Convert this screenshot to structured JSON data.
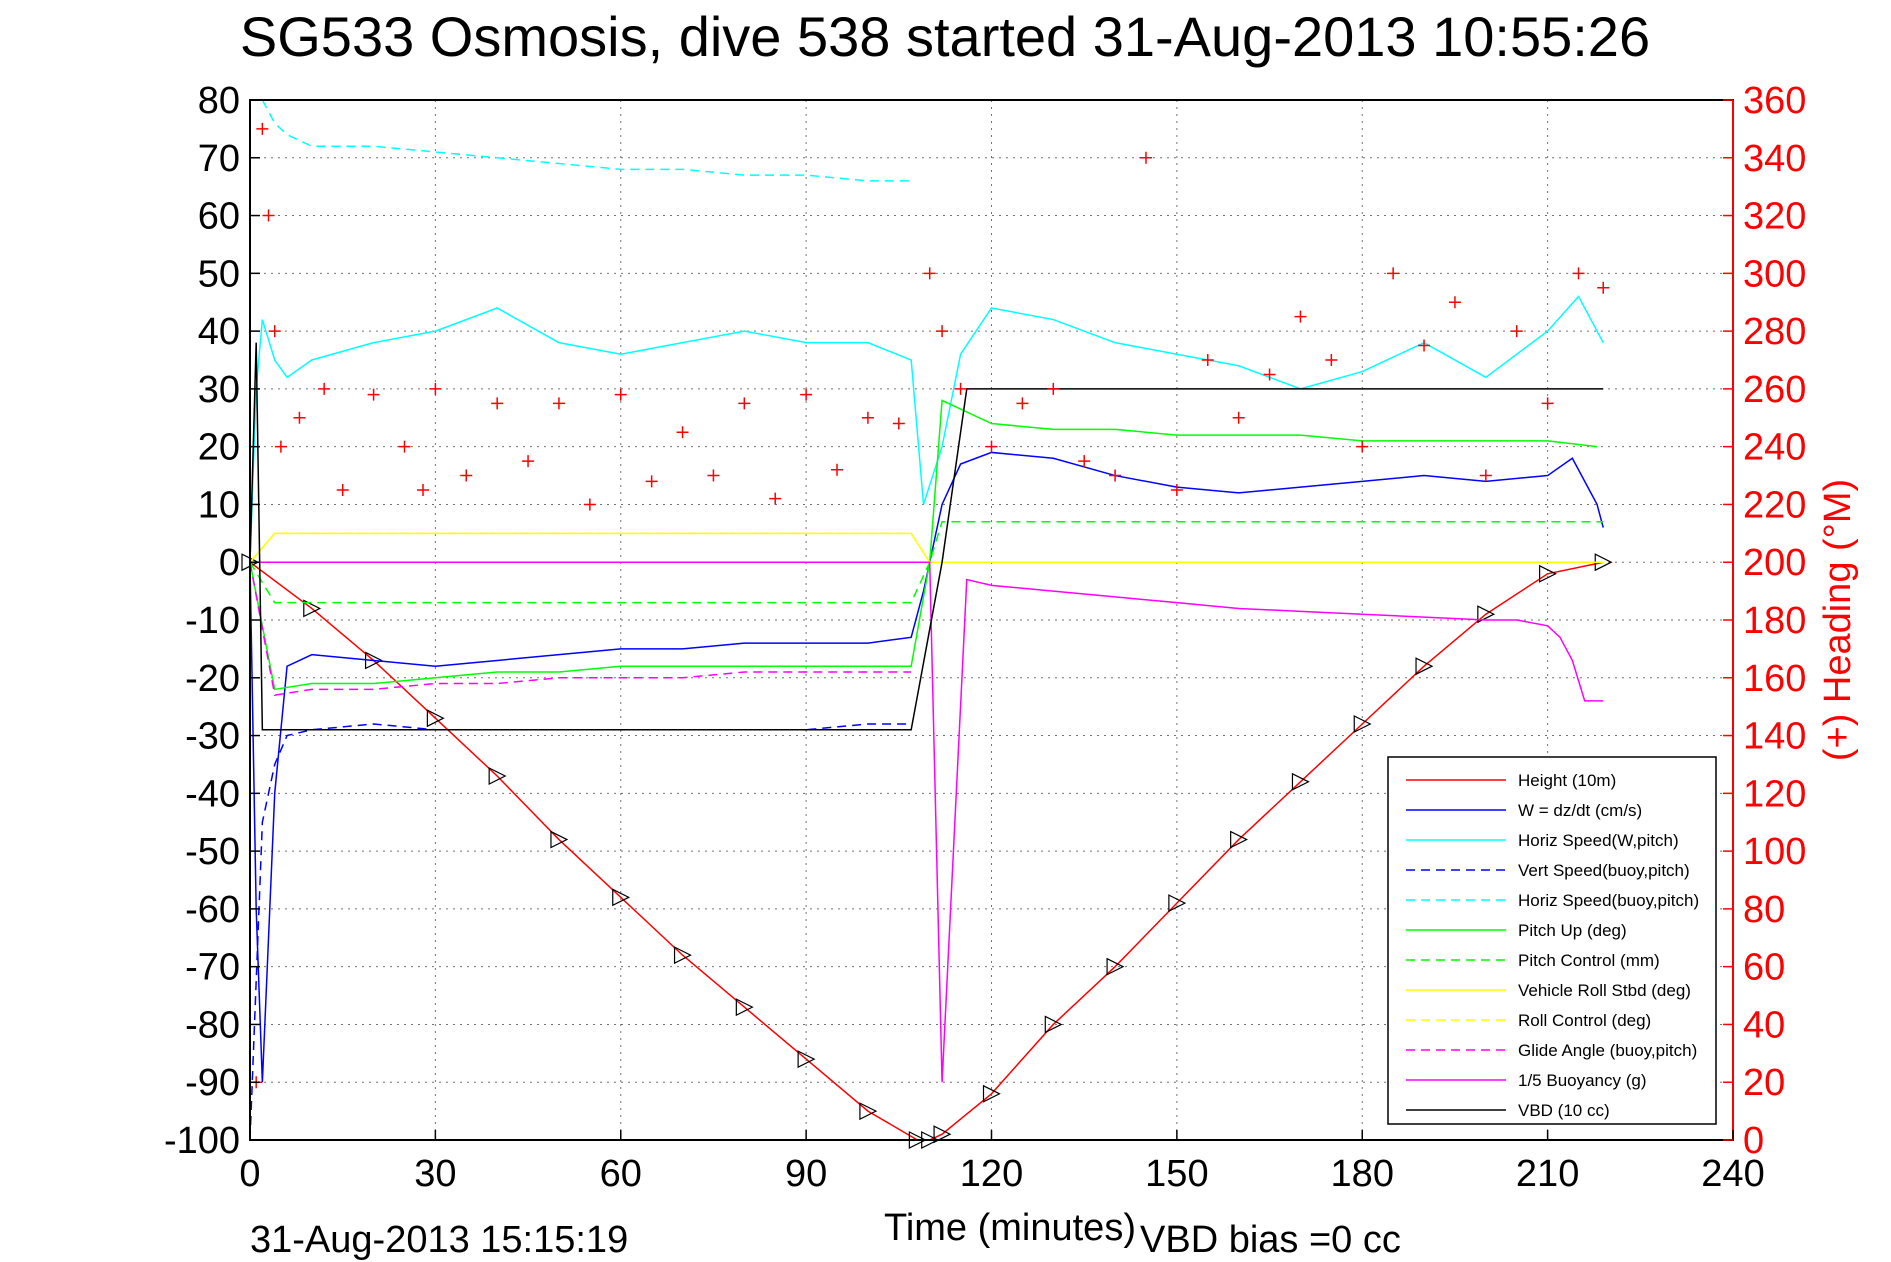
{
  "chart_data": {
    "type": "line",
    "title": "SG533 Osmosis, dive 538 started 31-Aug-2013 10:55:26",
    "xlabel": "Time (minutes)",
    "ylabel": "",
    "y2label": "(+) Heading (°M)",
    "xlim": [
      0,
      240
    ],
    "ylim": [
      -100,
      80
    ],
    "y2lim": [
      0,
      360
    ],
    "xticks": [
      "0",
      "30",
      "60",
      "90",
      "120",
      "150",
      "180",
      "210",
      "240"
    ],
    "yticks": [
      "80",
      "70",
      "60",
      "50",
      "40",
      "30",
      "20",
      "10",
      "0",
      "-10",
      "-20",
      "-30",
      "-40",
      "-50",
      "-60",
      "-70",
      "-80",
      "-90",
      "-100"
    ],
    "y2ticks": [
      "360",
      "340",
      "320",
      "300",
      "280",
      "260",
      "240",
      "220",
      "200",
      "180",
      "160",
      "140",
      "120",
      "100",
      "80",
      "60",
      "40",
      "20",
      "0"
    ],
    "grid": true,
    "legend_position": "lower-right",
    "footer_left": "31-Aug-2013 15:15:19",
    "footer_right": "VBD bias =0 cc",
    "series": [
      {
        "name": "Height (10m)",
        "color": "#ff0000",
        "style": "solid",
        "x": [
          0,
          10,
          20,
          30,
          40,
          50,
          60,
          70,
          80,
          90,
          100,
          108,
          110,
          112,
          120,
          130,
          140,
          150,
          160,
          170,
          180,
          190,
          200,
          210,
          219
        ],
        "y": [
          0,
          -8,
          -17,
          -27,
          -37,
          -48,
          -58,
          -68,
          -77,
          -86,
          -95,
          -100,
          -100,
          -99,
          -92,
          -80,
          -70,
          -59,
          -48,
          -38,
          -28,
          -18,
          -9,
          -2,
          0
        ]
      },
      {
        "name": "W = dz/dt (cm/s)",
        "color": "#0000ff",
        "style": "solid",
        "x": [
          0,
          1,
          2,
          4,
          6,
          10,
          20,
          30,
          40,
          50,
          60,
          70,
          80,
          90,
          100,
          107,
          109,
          112,
          115,
          120,
          130,
          140,
          150,
          160,
          170,
          180,
          190,
          200,
          210,
          214,
          218,
          219
        ],
        "y": [
          0,
          -60,
          -90,
          -40,
          -18,
          -16,
          -17,
          -18,
          -17,
          -16,
          -15,
          -15,
          -14,
          -14,
          -14,
          -13,
          -5,
          10,
          17,
          19,
          18,
          15,
          13,
          12,
          13,
          14,
          15,
          14,
          15,
          18,
          10,
          6
        ]
      },
      {
        "name": "Horiz Speed(W,pitch)",
        "color": "#00ffff",
        "style": "solid",
        "x": [
          0,
          1,
          2,
          4,
          6,
          10,
          20,
          30,
          40,
          50,
          60,
          70,
          80,
          90,
          100,
          107,
          109,
          112,
          115,
          120,
          130,
          140,
          150,
          160,
          170,
          180,
          190,
          200,
          210,
          215,
          219
        ],
        "y": [
          0,
          30,
          42,
          35,
          32,
          35,
          38,
          40,
          44,
          38,
          36,
          38,
          40,
          38,
          38,
          35,
          10,
          20,
          36,
          44,
          42,
          38,
          36,
          34,
          30,
          33,
          38,
          32,
          40,
          46,
          38
        ]
      },
      {
        "name": "Vert Speed(buoy,pitch)",
        "color": "#0000ff",
        "style": "dashed",
        "x": [
          0,
          2,
          4,
          6,
          10,
          20,
          30,
          40,
          50,
          60,
          70,
          80,
          90,
          100,
          107
        ],
        "y": [
          -100,
          -45,
          -35,
          -30,
          -29,
          -28,
          -29,
          -29,
          -29,
          -29,
          -29,
          -29,
          -29,
          -28,
          -28
        ]
      },
      {
        "name": "Horiz Speed(buoy,pitch)",
        "color": "#00ffff",
        "style": "dashed",
        "x": [
          2,
          4,
          6,
          10,
          20,
          30,
          40,
          50,
          60,
          70,
          80,
          90,
          100,
          107
        ],
        "y": [
          80,
          76,
          74,
          72,
          72,
          71,
          70,
          69,
          68,
          68,
          67,
          67,
          66,
          66
        ]
      },
      {
        "name": "Pitch Up (deg)",
        "color": "#00ff00",
        "style": "solid",
        "x": [
          0,
          4,
          10,
          20,
          30,
          40,
          50,
          60,
          70,
          80,
          90,
          100,
          107,
          110,
          112,
          120,
          130,
          140,
          150,
          160,
          170,
          180,
          190,
          200,
          210,
          218
        ],
        "y": [
          0,
          -22,
          -21,
          -21,
          -20,
          -19,
          -19,
          -18,
          -18,
          -18,
          -18,
          -18,
          -18,
          0,
          28,
          24,
          23,
          23,
          22,
          22,
          22,
          21,
          21,
          21,
          21,
          20
        ]
      },
      {
        "name": "Pitch Control (mm)",
        "color": "#00ff00",
        "style": "dashed",
        "x": [
          0,
          4,
          10,
          20,
          30,
          40,
          50,
          60,
          70,
          80,
          90,
          100,
          107,
          110,
          112,
          120,
          140,
          160,
          180,
          200,
          219
        ],
        "y": [
          0,
          -7,
          -7,
          -7,
          -7,
          -7,
          -7,
          -7,
          -7,
          -7,
          -7,
          -7,
          -7,
          0,
          7,
          7,
          7,
          7,
          7,
          7,
          7
        ]
      },
      {
        "name": "Vehicle Roll Stbd (deg)",
        "color": "#ffff00",
        "style": "solid",
        "x": [
          0,
          4,
          10,
          20,
          30,
          40,
          50,
          60,
          70,
          80,
          90,
          100,
          107,
          110,
          120,
          140,
          160,
          180,
          200,
          219
        ],
        "y": [
          0,
          5,
          5,
          5,
          5,
          5,
          5,
          5,
          5,
          5,
          5,
          5,
          5,
          0,
          0,
          0,
          0,
          0,
          0,
          0
        ]
      },
      {
        "name": "Roll Control (deg)",
        "color": "#ffff00",
        "style": "dashed",
        "x": [
          0,
          4,
          10,
          20,
          30,
          40,
          50,
          60,
          70,
          80,
          90,
          100,
          107,
          110,
          120,
          140,
          160,
          180,
          200,
          219
        ],
        "y": [
          0,
          5,
          5,
          5,
          5,
          5,
          5,
          5,
          5,
          5,
          5,
          5,
          5,
          0,
          0,
          0,
          0,
          0,
          0,
          0
        ]
      },
      {
        "name": "Glide Angle (buoy,pitch)",
        "color": "#ff00ff",
        "style": "dashed",
        "x": [
          0,
          4,
          10,
          20,
          30,
          40,
          50,
          60,
          70,
          80,
          90,
          100,
          107
        ],
        "y": [
          0,
          -23,
          -22,
          -22,
          -21,
          -21,
          -20,
          -20,
          -20,
          -19,
          -19,
          -19,
          -19
        ]
      },
      {
        "name": "1/5 Buoyancy (g)",
        "color": "#ff00ff",
        "style": "solid",
        "x": [
          0,
          108,
          110,
          112,
          116,
          120,
          130,
          140,
          150,
          160,
          170,
          180,
          190,
          200,
          205,
          210,
          212,
          214,
          216,
          219
        ],
        "y": [
          0,
          0,
          0,
          -90,
          -3,
          -4,
          -5,
          -6,
          -7,
          -8,
          -8.5,
          -9,
          -9.5,
          -10,
          -10,
          -11,
          -13,
          -17,
          -24,
          -24
        ]
      },
      {
        "name": "VBD (10 cc)",
        "color": "#000000",
        "style": "solid",
        "x": [
          0,
          1,
          2,
          4,
          30,
          60,
          90,
          107,
          112,
          116,
          120,
          150,
          180,
          210,
          219
        ],
        "y": [
          0,
          38,
          -29,
          -29,
          -29,
          -29,
          -29,
          -29,
          0,
          30,
          30,
          30,
          30,
          30,
          30
        ]
      },
      {
        "name": "Heading",
        "color": "#ff0000",
        "style": "markers",
        "axis": "right",
        "x": [
          1,
          2,
          3,
          4,
          5,
          8,
          12,
          15,
          20,
          25,
          28,
          30,
          35,
          40,
          45,
          50,
          55,
          60,
          65,
          70,
          75,
          80,
          85,
          90,
          95,
          100,
          105,
          110,
          112,
          115,
          120,
          125,
          130,
          135,
          140,
          145,
          150,
          155,
          160,
          165,
          170,
          175,
          180,
          185,
          190,
          195,
          200,
          205,
          210,
          215,
          219
        ],
        "y": [
          20,
          350,
          320,
          280,
          240,
          250,
          260,
          225,
          258,
          240,
          225,
          260,
          230,
          255,
          235,
          255,
          220,
          258,
          228,
          245,
          230,
          255,
          222,
          258,
          232,
          250,
          248,
          300,
          280,
          260,
          240,
          255,
          260,
          235,
          230,
          340,
          225,
          270,
          250,
          265,
          285,
          270,
          240,
          300,
          275,
          290,
          230,
          280,
          255,
          300,
          295
        ]
      }
    ]
  }
}
